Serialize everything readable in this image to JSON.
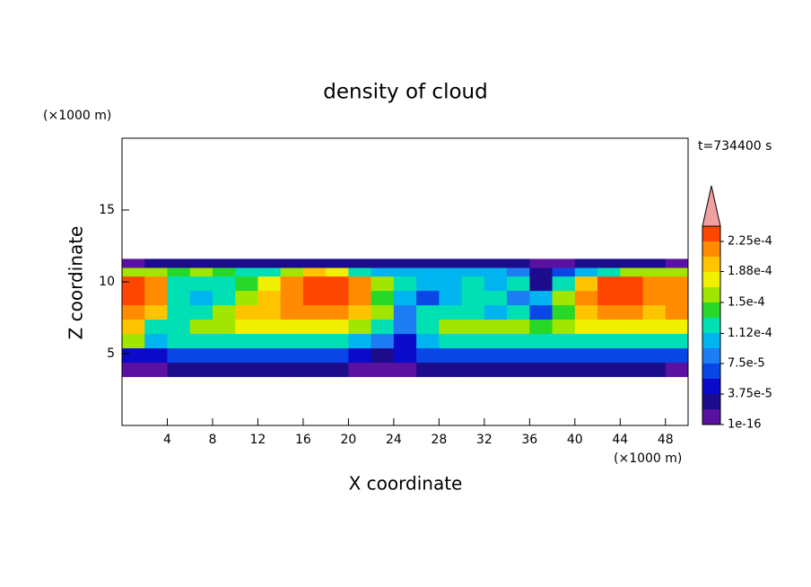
{
  "chart_data": {
    "type": "contour",
    "title": "density of cloud",
    "y_unit": "(×1000 m)",
    "x_unit": "(×1000 m)",
    "time_label": "t=734400 s",
    "xlabel": "X coordinate",
    "ylabel": "Z coordinate",
    "xlim": [
      0,
      50
    ],
    "ylim": [
      0,
      20
    ],
    "xticks": [
      4,
      8,
      12,
      16,
      20,
      24,
      28,
      32,
      36,
      40,
      44,
      48
    ],
    "yticks": [
      5,
      10,
      15
    ],
    "x_edges": [
      0,
      2,
      4,
      6,
      8,
      10,
      12,
      14,
      16,
      18,
      20,
      22,
      24,
      26,
      28,
      30,
      32,
      34,
      36,
      38,
      40,
      42,
      44,
      46,
      48,
      50
    ],
    "z_edges": [
      3.4,
      4.4,
      5.4,
      6.4,
      7.4,
      8.4,
      9.4,
      10.4,
      11.0,
      11.6
    ],
    "z": [
      [
        1.2e-05,
        1.5e-05,
        2.6e-05,
        2.6e-05,
        2.6e-05,
        2.6e-05,
        2.6e-05,
        2.6e-05,
        2.6e-05,
        2.6e-05,
        1.4e-05,
        1.2e-05,
        1.5e-05,
        2.6e-05,
        2.6e-05,
        2.6e-05,
        2.6e-05,
        2.6e-05,
        2.6e-05,
        2.6e-05,
        2.6e-05,
        2.6e-05,
        2.6e-05,
        2.6e-05,
        1.5e-05
      ],
      [
        4.5e-05,
        4.5e-05,
        6e-05,
        6.5e-05,
        6.5e-05,
        6.5e-05,
        6.5e-05,
        6.5e-05,
        6.5e-05,
        6.5e-05,
        4e-05,
        3e-05,
        4e-05,
        6.5e-05,
        6.5e-05,
        6.5e-05,
        6.5e-05,
        6.5e-05,
        6.5e-05,
        6.5e-05,
        6.5e-05,
        6.5e-05,
        6.5e-05,
        6.5e-05,
        6e-05
      ],
      [
        0.00016,
        0.0001,
        0.00012,
        0.000125,
        0.000125,
        0.000125,
        0.000125,
        0.000125,
        0.000125,
        0.00012,
        0.00011,
        8e-05,
        5e-05,
        0.00011,
        0.000125,
        0.000125,
        0.000125,
        0.000125,
        0.000125,
        0.000125,
        0.000125,
        0.000125,
        0.000125,
        0.000125,
        0.00013
      ],
      [
        0.0002,
        0.00013,
        0.00012,
        0.00015,
        0.00016,
        0.00017,
        0.00017,
        0.00017,
        0.00017,
        0.00017,
        0.00016,
        0.00013,
        8e-05,
        0.00012,
        0.00015,
        0.00016,
        0.00016,
        0.00015,
        0.00014,
        0.00016,
        0.00017,
        0.00017,
        0.00017,
        0.00017,
        0.00018
      ],
      [
        0.00022,
        0.00019,
        0.00012,
        0.00013,
        0.00015,
        0.00019,
        0.0002,
        0.00021,
        0.00021,
        0.00021,
        0.00019,
        0.00015,
        8e-05,
        0.00012,
        0.00013,
        0.00013,
        0.00011,
        0.00012,
        6e-05,
        0.00014,
        0.00019,
        0.00021,
        0.00021,
        0.0002,
        0.00021
      ],
      [
        0.00023,
        0.00022,
        0.00013,
        0.00011,
        0.00013,
        0.00016,
        0.0002,
        0.00022,
        0.00023,
        0.00023,
        0.00021,
        0.00014,
        0.0001,
        6e-05,
        0.0001,
        0.00013,
        0.00012,
        9e-05,
        0.0001,
        0.00016,
        0.00021,
        0.00023,
        0.00023,
        0.00022,
        0.00022
      ],
      [
        0.00023,
        0.00021,
        0.00012,
        0.00013,
        0.00013,
        0.00014,
        0.00017,
        0.00022,
        0.00023,
        0.00023,
        0.00021,
        0.00015,
        0.00012,
        0.0001,
        0.0001,
        0.00012,
        0.00011,
        0.00013,
        3e-05,
        0.00013,
        0.0002,
        0.00023,
        0.00023,
        0.00022,
        0.00022
      ],
      [
        0.00015,
        0.00016,
        0.00014,
        0.00015,
        0.00014,
        0.00013,
        0.00013,
        0.00016,
        0.00019,
        0.00018,
        0.00013,
        0.00011,
        0.00011,
        0.00011,
        0.00011,
        0.00011,
        0.0001,
        8e-05,
        2e-05,
        6e-05,
        0.0001,
        0.00013,
        0.00016,
        0.00016,
        0.00015
      ],
      [
        1.5e-05,
        2.5e-05,
        2.5e-05,
        2.5e-05,
        2.5e-05,
        2.5e-05,
        2.5e-05,
        2.5e-05,
        2.5e-05,
        2.5e-05,
        2.5e-05,
        2.5e-05,
        2.5e-05,
        2.5e-05,
        2.5e-05,
        2.5e-05,
        2.5e-05,
        2.5e-05,
        1.5e-05,
        1.5e-05,
        2.5e-05,
        2.5e-05,
        2.5e-05,
        2.5e-05,
        1.5e-05
      ]
    ],
    "levels": [
      1e-16,
      1.875e-05,
      3.75e-05,
      5.625e-05,
      7.5e-05,
      9.375e-05,
      0.0001125,
      0.00013125,
      0.00015,
      0.00016875,
      0.0001875,
      0.00020625,
      0.000225,
      0.00024375
    ],
    "colors": [
      "#5a10a0",
      "#1c0c8c",
      "#0a0ac8",
      "#0a46e6",
      "#1e7cf5",
      "#00b4f0",
      "#00e0b4",
      "#28d828",
      "#a0e600",
      "#f0f000",
      "#ffc400",
      "#ff8c00",
      "#ff4600"
    ],
    "over_color": "#f0a0a0",
    "colorbar_ticks": [
      {
        "value": 1e-16,
        "label": "1e-16"
      },
      {
        "value": 3.75e-05,
        "label": "3.75e-5"
      },
      {
        "value": 7.5e-05,
        "label": "7.5e-5"
      },
      {
        "value": 0.000112,
        "label": "1.12e-4"
      },
      {
        "value": 0.00015,
        "label": "1.5e-4"
      },
      {
        "value": 0.000188,
        "label": "1.88e-4"
      },
      {
        "value": 0.000225,
        "label": "2.25e-4"
      }
    ]
  }
}
